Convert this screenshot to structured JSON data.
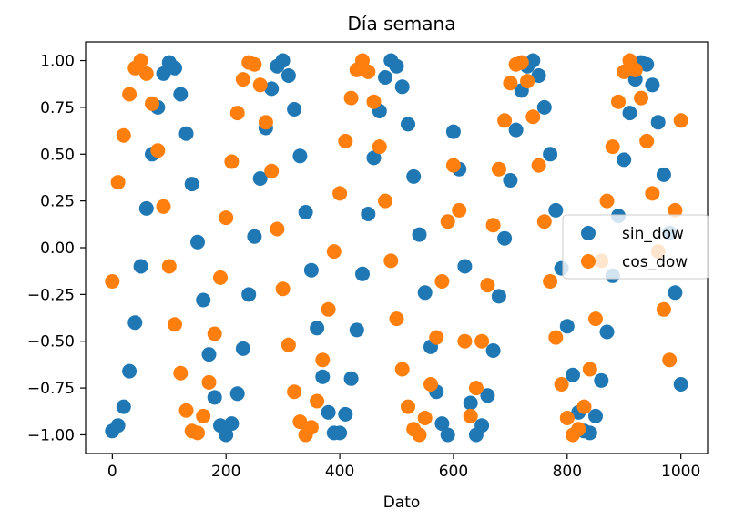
{
  "chart_data": {
    "type": "scatter",
    "title": "Día semana",
    "xlabel": "Dato",
    "ylabel": "",
    "xlim": [
      -47,
      1047
    ],
    "ylim": [
      -1.1,
      1.1
    ],
    "xticks": [
      0,
      200,
      400,
      600,
      800,
      1000
    ],
    "xtick_labels": [
      "0",
      "200",
      "400",
      "600",
      "800",
      "1000"
    ],
    "yticks": [
      1.0,
      0.75,
      0.5,
      0.25,
      0.0,
      -0.25,
      -0.5,
      -0.75,
      -1.0
    ],
    "ytick_labels": [
      "1.00",
      "0.75",
      "0.50",
      "0.25",
      "0.00",
      "−0.25",
      "−0.50",
      "−0.75",
      "−1.00"
    ],
    "grid": false,
    "legend": "center-right",
    "series": [
      {
        "name": "sin_dow",
        "color": "#1f77b4",
        "x": [
          0,
          10,
          20,
          30,
          40,
          50,
          60,
          70,
          80,
          90,
          100,
          110,
          120,
          130,
          140,
          150,
          160,
          170,
          180,
          190,
          200,
          210,
          220,
          230,
          240,
          250,
          260,
          270,
          280,
          290,
          300,
          310,
          320,
          330,
          340,
          350,
          360,
          370,
          380,
          390,
          400,
          410,
          420,
          430,
          440,
          450,
          460,
          470,
          480,
          490,
          500,
          510,
          520,
          530,
          540,
          550,
          560,
          570,
          580,
          590,
          600,
          610,
          620,
          630,
          640,
          650,
          660,
          670,
          680,
          690,
          700,
          710,
          720,
          730,
          740,
          750,
          760,
          770,
          780,
          790,
          800,
          810,
          820,
          830,
          840,
          850,
          860,
          870,
          880,
          890,
          900,
          910,
          920,
          930,
          940,
          950,
          960,
          970,
          980,
          990,
          1000
        ],
        "y": [
          -0.98,
          -0.95,
          -0.85,
          -0.66,
          -0.4,
          -0.1,
          0.21,
          0.5,
          0.75,
          0.93,
          0.99,
          0.96,
          0.82,
          0.61,
          0.34,
          0.03,
          -0.28,
          -0.57,
          -0.8,
          -0.95,
          -1.0,
          -0.94,
          -0.78,
          -0.54,
          -0.25,
          0.06,
          0.37,
          0.64,
          0.85,
          0.97,
          1.0,
          0.92,
          0.74,
          0.49,
          0.19,
          -0.12,
          -0.43,
          -0.69,
          -0.88,
          -0.99,
          -0.99,
          -0.89,
          -0.7,
          -0.44,
          -0.14,
          0.18,
          0.48,
          0.73,
          0.91,
          1.0,
          0.97,
          0.86,
          0.66,
          0.38,
          0.07,
          -0.24,
          -0.53,
          -0.77,
          -0.94,
          -1.0,
          0.62,
          0.42,
          -0.1,
          -0.83,
          -1.0,
          -0.95,
          -0.79,
          -0.55,
          -0.26,
          0.05,
          0.36,
          0.63,
          0.84,
          0.97,
          1.0,
          0.92,
          0.75,
          0.5,
          0.2,
          -0.11,
          -0.42,
          -0.68,
          -0.88,
          -0.98,
          -0.99,
          -0.9,
          -0.71,
          -0.45,
          -0.15,
          0.17,
          0.47,
          0.72,
          0.9,
          0.99,
          0.98,
          0.87,
          0.67,
          0.39,
          0.08,
          -0.24,
          -0.73
        ]
      },
      {
        "name": "cos_dow",
        "color": "#ff7f0e",
        "x": [
          0,
          10,
          20,
          30,
          40,
          50,
          60,
          70,
          80,
          90,
          100,
          110,
          120,
          130,
          140,
          150,
          160,
          170,
          180,
          190,
          200,
          210,
          220,
          230,
          240,
          250,
          260,
          270,
          280,
          290,
          300,
          310,
          320,
          330,
          340,
          350,
          360,
          370,
          380,
          390,
          400,
          410,
          420,
          430,
          440,
          450,
          460,
          470,
          480,
          490,
          500,
          510,
          520,
          530,
          540,
          550,
          560,
          570,
          580,
          590,
          600,
          610,
          620,
          630,
          640,
          650,
          660,
          670,
          680,
          690,
          700,
          710,
          720,
          730,
          740,
          750,
          760,
          770,
          780,
          790,
          800,
          810,
          820,
          830,
          840,
          850,
          860,
          870,
          880,
          890,
          900,
          910,
          920,
          930,
          940,
          950,
          960,
          970,
          980,
          990,
          1000
        ],
        "y": [
          -0.18,
          0.35,
          0.6,
          0.82,
          0.96,
          1.0,
          0.93,
          0.77,
          0.52,
          0.22,
          -0.1,
          -0.41,
          -0.67,
          -0.87,
          -0.98,
          -0.99,
          -0.9,
          -0.72,
          -0.46,
          -0.16,
          0.16,
          0.46,
          0.72,
          0.9,
          0.99,
          0.98,
          0.87,
          0.67,
          0.41,
          0.1,
          -0.22,
          -0.52,
          -0.77,
          -0.93,
          -1.0,
          -0.96,
          -0.82,
          -0.6,
          -0.33,
          -0.02,
          0.29,
          0.57,
          0.8,
          0.95,
          1.0,
          0.94,
          0.78,
          0.54,
          0.25,
          -0.07,
          -0.38,
          -0.65,
          -0.85,
          -0.97,
          -1.0,
          -0.91,
          -0.73,
          -0.48,
          -0.18,
          0.14,
          0.44,
          0.2,
          -0.5,
          -0.9,
          -0.75,
          -0.5,
          -0.2,
          0.12,
          0.42,
          0.68,
          0.88,
          0.98,
          0.99,
          0.89,
          0.7,
          0.44,
          0.14,
          -0.18,
          -0.48,
          -0.73,
          -0.91,
          -1.0,
          -0.97,
          -0.85,
          -0.65,
          -0.38,
          -0.07,
          0.25,
          0.54,
          0.78,
          0.94,
          1.0,
          0.95,
          0.8,
          0.57,
          0.29,
          -0.02,
          -0.33,
          -0.6,
          0.2,
          0.68
        ]
      }
    ]
  }
}
